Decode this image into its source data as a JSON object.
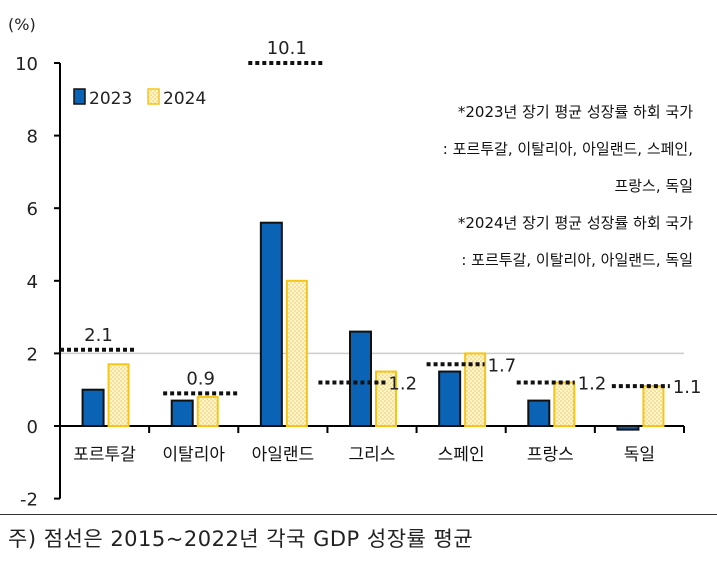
{
  "chart_data": {
    "type": "bar",
    "ylabel": "(%)",
    "ylim": [
      -2,
      10
    ],
    "yticks": [
      -2,
      0,
      2,
      4,
      6,
      8,
      10
    ],
    "grid": "y=2 only",
    "categories": [
      "포르투갈",
      "이탈리아",
      "아일랜드",
      "그리스",
      "스페인",
      "프랑스",
      "독일"
    ],
    "series": [
      {
        "name": "2023",
        "color": "#0a63b5",
        "values": [
          1.0,
          0.7,
          5.6,
          2.6,
          1.5,
          0.7,
          -0.1
        ]
      },
      {
        "name": "2024",
        "color": "#f5c518",
        "pattern": "dotted",
        "values": [
          1.7,
          0.8,
          4.0,
          1.5,
          2.0,
          1.2,
          1.1
        ]
      }
    ],
    "reference": {
      "style": "dotted",
      "values": [
        2.1,
        0.9,
        10.1,
        1.2,
        1.7,
        1.2,
        1.1
      ],
      "labels": [
        "2.1",
        "0.9",
        "10.1",
        "1.2",
        "1.7",
        "1.2",
        "1.1"
      ]
    },
    "legend": "top-left",
    "annotations": [
      "*2023년 장기 평균 성장률 하회 국가",
      ": 포르투갈, 이탈리아, 아일랜드, 스페인,",
      "프랑스, 독일",
      "*2024년 장기 평균 성장률 하회 국가",
      ": 포르투갈, 이탈리아, 아일랜드, 독일"
    ]
  },
  "footer": "주) 점선은 2015~2022년 각국 GDP 성장률 평균"
}
